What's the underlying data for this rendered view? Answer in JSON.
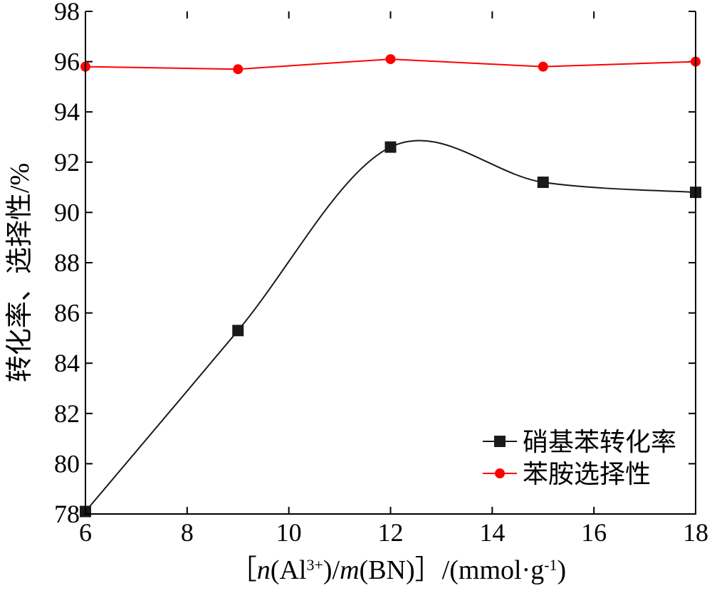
{
  "chart_data": {
    "type": "line",
    "x": [
      6,
      9,
      12,
      15,
      18
    ],
    "xlim": [
      6,
      18
    ],
    "ylim": [
      78,
      98
    ],
    "xticks": [
      6,
      8,
      10,
      12,
      14,
      16,
      18
    ],
    "yticks": [
      78,
      80,
      82,
      84,
      86,
      88,
      90,
      92,
      94,
      96,
      98
    ],
    "xlabel": "［n(Al3+)/m(BN)］/(mmol·g-1)",
    "xlabel_parts": {
      "open": "［",
      "n": "n",
      "al": "(Al",
      "charge": "3+",
      "mid": ")/",
      "m": "m",
      "bn": "(BN)",
      "close": "］",
      "unit": "/(mmol·g",
      "exp": "-1",
      "end": ")"
    },
    "ylabel": "转化率、选择性/%",
    "grid": false,
    "legend_position": "bottom-right",
    "series": [
      {
        "name": "硝基苯转化率",
        "color": "#1a1a1a",
        "marker": "square",
        "smooth": true,
        "values": [
          78.1,
          85.3,
          92.6,
          91.2,
          90.8
        ]
      },
      {
        "name": "苯胺选择性",
        "color": "#ff0000",
        "marker": "circle",
        "smooth": false,
        "values": [
          95.8,
          95.7,
          96.1,
          95.8,
          96.0
        ]
      }
    ]
  }
}
